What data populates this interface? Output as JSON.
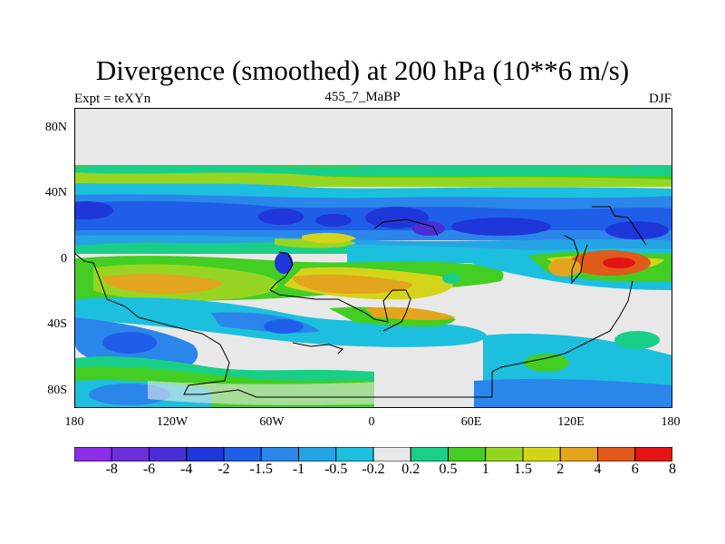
{
  "title": "Divergence (smoothed) at 200 hPa (10**6 m/s)",
  "subtitle_left": "Expt = teXYn",
  "subtitle_center": "455_7_MaBP",
  "subtitle_right": "DJF",
  "y_ticks": [
    "80N",
    "40N",
    "0",
    "40S",
    "80S"
  ],
  "x_ticks": [
    "180",
    "120W",
    "60W",
    "0",
    "60E",
    "120E",
    "180"
  ],
  "legend": {
    "labels": [
      "-8",
      "-6",
      "-4",
      "-2",
      "-1.5",
      "-1",
      "-0.5",
      "-0.2",
      "0.2",
      "0.5",
      "1",
      "1.5",
      "2",
      "4",
      "6",
      "8"
    ],
    "colors": [
      "#8c2ee8",
      "#6b2fdc",
      "#4a2fd6",
      "#1f37d8",
      "#1f5ee8",
      "#2a86ea",
      "#25a4e4",
      "#1cc0de",
      "#e8e8e8",
      "#19cf88",
      "#44cd22",
      "#96d622",
      "#d4d41b",
      "#e2a51c",
      "#e15a1a",
      "#e41414"
    ]
  }
}
